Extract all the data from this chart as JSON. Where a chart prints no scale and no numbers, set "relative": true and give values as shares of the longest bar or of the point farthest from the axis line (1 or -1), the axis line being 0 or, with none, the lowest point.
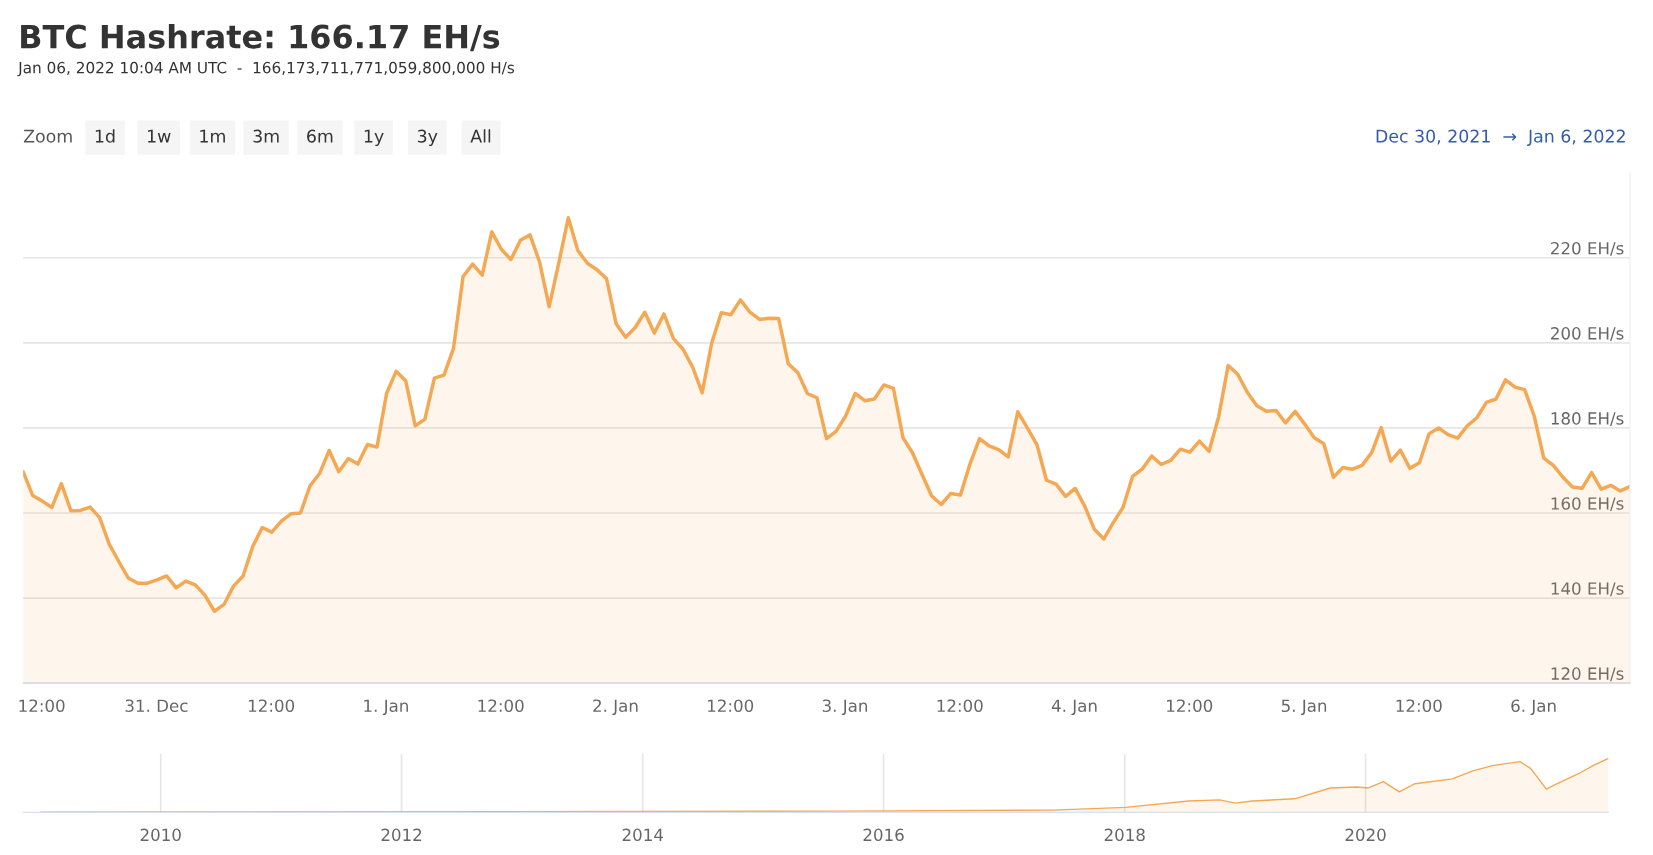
{
  "chart_data": [
    {
      "type": "area",
      "title": "BTC Hashrate: 166.17 EH/s",
      "subtitle": "Jan 06, 2022 10:04 AM UTC  -  166,173,711,771,059,800,000 H/s",
      "annotations": [
        "Zoom",
        "1d",
        "1w",
        "1m",
        "3m",
        "6m",
        "1y",
        "3y",
        "All",
        "Dec 30, 2021  →  Jan 6, 2022"
      ],
      "x": [
        "2021-12-30T10:04",
        "2021-12-30T11:04",
        "2021-12-30T12:04",
        "2021-12-30T13:04",
        "2021-12-30T14:04",
        "2021-12-30T15:04",
        "2021-12-30T16:04",
        "2021-12-30T17:04",
        "2021-12-30T18:04",
        "2021-12-30T19:04",
        "2021-12-30T20:04",
        "2021-12-30T21:04",
        "2021-12-30T22:04",
        "2021-12-30T23:04",
        "2021-12-31T00:04",
        "2021-12-31T01:04",
        "2021-12-31T02:04",
        "2021-12-31T03:04",
        "2021-12-31T04:04",
        "2021-12-31T05:04",
        "2021-12-31T06:04",
        "2021-12-31T07:04",
        "2021-12-31T08:04",
        "2021-12-31T09:04",
        "2021-12-31T10:04",
        "2021-12-31T11:04",
        "2021-12-31T12:04",
        "2021-12-31T13:04",
        "2021-12-31T14:04",
        "2021-12-31T15:04",
        "2021-12-31T16:04",
        "2021-12-31T17:04",
        "2021-12-31T18:04",
        "2021-12-31T19:04",
        "2021-12-31T20:04",
        "2021-12-31T21:04",
        "2021-12-31T22:04",
        "2021-12-31T23:04",
        "2022-01-01T00:04",
        "2022-01-01T01:04",
        "2022-01-01T02:04",
        "2022-01-01T03:04",
        "2022-01-01T04:04",
        "2022-01-01T05:04",
        "2022-01-01T06:04",
        "2022-01-01T07:04",
        "2022-01-01T08:04",
        "2022-01-01T09:04",
        "2022-01-01T10:04",
        "2022-01-01T11:04",
        "2022-01-01T12:04",
        "2022-01-01T13:04",
        "2022-01-01T14:04",
        "2022-01-01T15:04",
        "2022-01-01T16:04",
        "2022-01-01T17:04",
        "2022-01-01T18:04",
        "2022-01-01T19:04",
        "2022-01-01T20:04",
        "2022-01-01T21:04",
        "2022-01-01T22:04",
        "2022-01-01T23:04",
        "2022-01-02T00:04",
        "2022-01-02T01:04",
        "2022-01-02T02:04",
        "2022-01-02T03:04",
        "2022-01-02T04:04",
        "2022-01-02T05:04",
        "2022-01-02T06:04",
        "2022-01-02T07:04",
        "2022-01-02T08:04",
        "2022-01-02T09:04",
        "2022-01-02T10:04",
        "2022-01-02T11:04",
        "2022-01-02T12:04",
        "2022-01-02T13:04",
        "2022-01-02T14:04",
        "2022-01-02T15:04",
        "2022-01-02T16:04",
        "2022-01-02T17:04",
        "2022-01-02T18:04",
        "2022-01-02T19:04",
        "2022-01-02T20:04",
        "2022-01-02T21:04",
        "2022-01-02T22:04",
        "2022-01-02T23:04",
        "2022-01-03T00:04",
        "2022-01-03T01:04",
        "2022-01-03T02:04",
        "2022-01-03T03:04",
        "2022-01-03T04:04",
        "2022-01-03T05:04",
        "2022-01-03T06:04",
        "2022-01-03T07:04",
        "2022-01-03T08:04",
        "2022-01-03T09:04",
        "2022-01-03T10:04",
        "2022-01-03T11:04",
        "2022-01-03T12:04",
        "2022-01-03T13:04",
        "2022-01-03T14:04",
        "2022-01-03T15:04",
        "2022-01-03T16:04",
        "2022-01-03T17:04",
        "2022-01-03T18:04",
        "2022-01-03T19:04",
        "2022-01-03T20:04",
        "2022-01-03T21:04",
        "2022-01-03T22:04",
        "2022-01-03T23:04",
        "2022-01-04T00:04",
        "2022-01-04T01:04",
        "2022-01-04T02:04",
        "2022-01-04T03:04",
        "2022-01-04T04:04",
        "2022-01-04T05:04",
        "2022-01-04T06:04",
        "2022-01-04T07:04",
        "2022-01-04T08:04",
        "2022-01-04T09:04",
        "2022-01-04T10:04",
        "2022-01-04T11:04",
        "2022-01-04T12:04",
        "2022-01-04T13:04",
        "2022-01-04T14:04",
        "2022-01-04T15:04",
        "2022-01-04T16:04",
        "2022-01-04T17:04",
        "2022-01-04T18:04",
        "2022-01-04T19:04",
        "2022-01-04T20:04",
        "2022-01-04T21:04",
        "2022-01-04T22:04",
        "2022-01-04T23:04",
        "2022-01-05T00:04",
        "2022-01-05T01:04",
        "2022-01-05T02:04",
        "2022-01-05T03:04",
        "2022-01-05T04:04",
        "2022-01-05T05:04",
        "2022-01-05T06:04",
        "2022-01-05T07:04",
        "2022-01-05T08:04",
        "2022-01-05T09:04",
        "2022-01-05T10:04",
        "2022-01-05T11:04",
        "2022-01-05T12:04",
        "2022-01-05T13:04",
        "2022-01-05T14:04",
        "2022-01-05T15:04",
        "2022-01-05T16:04",
        "2022-01-05T17:04",
        "2022-01-05T18:04",
        "2022-01-05T19:04",
        "2022-01-05T20:04",
        "2022-01-05T21:04",
        "2022-01-05T22:04",
        "2022-01-05T23:04",
        "2022-01-06T00:04",
        "2022-01-06T01:04",
        "2022-01-06T02:04",
        "2022-01-06T03:04",
        "2022-01-06T04:04",
        "2022-01-06T05:04",
        "2022-01-06T06:04",
        "2022-01-06T07:04",
        "2022-01-06T08:04",
        "2022-01-06T09:04",
        "2022-01-06T10:04"
      ],
      "series": [
        {
          "color": "#f5a853",
          "values": [
            169.7,
            164.1,
            162.8,
            161.3,
            166.9,
            160.5,
            160.6,
            161.4,
            158.9,
            152.7,
            148.6,
            144.7,
            143.5,
            143.5,
            144.3,
            145.2,
            142.4,
            144.0,
            143.1,
            140.7,
            136.9,
            138.5,
            142.8,
            145.2,
            152.1,
            156.6,
            155.5,
            158.1,
            159.8,
            160.0,
            166.4,
            169.3,
            174.7,
            169.7,
            172.8,
            171.5,
            176.1,
            175.5,
            188.1,
            193.3,
            191.1,
            180.5,
            182.0,
            191.7,
            192.4,
            198.7,
            215.6,
            218.5,
            215.9,
            226.1,
            222.0,
            219.6,
            224.1,
            225.4,
            219.0,
            208.5,
            218.7,
            229.4,
            221.7,
            218.7,
            217.2,
            215.1,
            204.5,
            201.3,
            203.6,
            207.2,
            202.3,
            206.8,
            201.0,
            198.5,
            194.3,
            188.3,
            200.0,
            207.1,
            206.6,
            210.1,
            207.2,
            205.5,
            205.8,
            205.7,
            195.1,
            193.0,
            188.1,
            187.1,
            177.5,
            179.2,
            182.8,
            188.1,
            186.4,
            186.8,
            190.1,
            189.3,
            177.7,
            174.1,
            169.0,
            164.0,
            162.0,
            164.6,
            164.2,
            171.5,
            177.5,
            175.8,
            174.9,
            173.2,
            183.8,
            180.0,
            176.1,
            167.7,
            166.8,
            163.9,
            165.8,
            161.6,
            156.2,
            153.9,
            157.8,
            161.3,
            168.6,
            170.3,
            173.4,
            171.4,
            172.4,
            175.0,
            174.3,
            176.9,
            174.5,
            182.6,
            194.7,
            192.6,
            188.4,
            185.2,
            183.9,
            184.1,
            181.2,
            183.9,
            180.9,
            177.7,
            176.3,
            168.4,
            170.7,
            170.3,
            171.2,
            174.2,
            180.1,
            172.2,
            174.8,
            170.5,
            171.8,
            178.6,
            180.0,
            178.4,
            177.6,
            180.5,
            182.4,
            186.0,
            186.8,
            191.3,
            189.6,
            189.0,
            182.8,
            172.9,
            171.2,
            168.4,
            166.1,
            165.8,
            169.5,
            165.6,
            166.5,
            165.2,
            166.2
          ]
        }
      ],
      "xlim": [
        "2021-12-30T10:04",
        "2022-01-06T10:04"
      ],
      "xticks": [
        {
          "value": "2021-12-30T12:00",
          "label": "12:00"
        },
        {
          "value": "2021-12-31T00:00",
          "label": "31. Dec"
        },
        {
          "value": "2021-12-31T12:00",
          "label": "12:00"
        },
        {
          "value": "2022-01-01T00:00",
          "label": "1. Jan"
        },
        {
          "value": "2022-01-01T12:00",
          "label": "12:00"
        },
        {
          "value": "2022-01-02T00:00",
          "label": "2. Jan"
        },
        {
          "value": "2022-01-02T12:00",
          "label": "12:00"
        },
        {
          "value": "2022-01-03T00:00",
          "label": "3. Jan"
        },
        {
          "value": "2022-01-03T12:00",
          "label": "12:00"
        },
        {
          "value": "2022-01-04T00:00",
          "label": "4. Jan"
        },
        {
          "value": "2022-01-04T12:00",
          "label": "12:00"
        },
        {
          "value": "2022-01-05T00:00",
          "label": "5. Jan"
        },
        {
          "value": "2022-01-05T12:00",
          "label": "12:00"
        },
        {
          "value": "2022-01-06T00:00",
          "label": "6. Jan"
        }
      ],
      "ylim": [
        120,
        240
      ],
      "yticks": [
        {
          "value": 120,
          "label": "120 EH/s"
        },
        {
          "value": 140,
          "label": "140 EH/s"
        },
        {
          "value": 160,
          "label": "160 EH/s"
        },
        {
          "value": 180,
          "label": "180 EH/s"
        },
        {
          "value": 200,
          "label": "200 EH/s"
        },
        {
          "value": 220,
          "label": "220 EH/s"
        }
      ],
      "grid": "y"
    },
    {
      "type": "area",
      "relative": true,
      "tick_labels": "x",
      "grid": "x",
      "x": [
        "2009-01-03",
        "2015-08-25",
        "2017-05-27",
        "2018-01-04",
        "2018-07-13",
        "2018-10-16",
        "2018-12-02",
        "2019-01-23",
        "2019-05-31",
        "2019-09-16",
        "2019-12-06",
        "2020-01-08",
        "2020-02-24",
        "2020-04-12",
        "2020-05-30",
        "2020-09-20",
        "2020-11-21",
        "2021-01-23",
        "2021-04-13",
        "2021-05-16",
        "2021-07-02",
        "2021-08-04",
        "2021-10-09",
        "2021-11-22",
        "2022-01-06"
      ],
      "series": [
        {
          "color": "#f5a853",
          "values": [
            0,
            0.02,
            0.04,
            0.09,
            0.21,
            0.23,
            0.17,
            0.21,
            0.25,
            0.45,
            0.47,
            0.45,
            0.57,
            0.38,
            0.53,
            0.62,
            0.77,
            0.87,
            0.94,
            0.81,
            0.43,
            0.53,
            0.72,
            0.87,
            1.0
          ]
        }
      ],
      "xlim": [
        "2008-11-10",
        "2022-01-06"
      ],
      "xticks": [
        {
          "value": "2010-01-01",
          "label": "2010"
        },
        {
          "value": "2012-01-01",
          "label": "2012"
        },
        {
          "value": "2014-01-01",
          "label": "2014"
        },
        {
          "value": "2016-01-01",
          "label": "2016"
        },
        {
          "value": "2018-01-01",
          "label": "2018"
        },
        {
          "value": "2020-01-01",
          "label": "2020"
        }
      ]
    }
  ]
}
